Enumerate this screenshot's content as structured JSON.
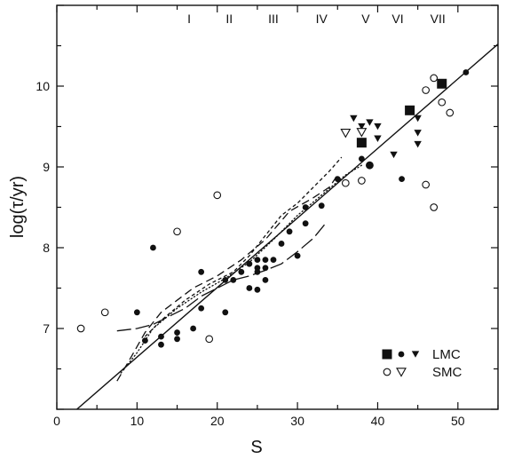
{
  "chart_data": {
    "type": "scatter",
    "xlabel": "S",
    "ylabel": "log(τ/yr)",
    "xlim": [
      0,
      55
    ],
    "ylim": [
      6.0,
      11.0
    ],
    "x_ticks": [
      0,
      10,
      20,
      30,
      40,
      50
    ],
    "y_ticks": [
      7,
      8,
      9,
      10
    ],
    "grid": false,
    "legend_position": "bottom-right",
    "classes": [
      {
        "label": "I",
        "s": 16.5
      },
      {
        "label": "II",
        "s": 21.5
      },
      {
        "label": "III",
        "s": 27
      },
      {
        "label": "IV",
        "s": 33
      },
      {
        "label": "V",
        "s": 38.5
      },
      {
        "label": "VI",
        "s": 42.5
      },
      {
        "label": "VII",
        "s": 47.5
      }
    ],
    "legend": [
      {
        "name": "LMC",
        "markers": [
          "filled-square",
          "filled-circle",
          "filled-triangle-down"
        ]
      },
      {
        "name": "SMC",
        "markers": [
          "open-circle",
          "open-triangle-down"
        ]
      }
    ],
    "series": [
      {
        "galaxy": "LMC",
        "marker": "filled-circle",
        "points": [
          [
            10,
            7.2
          ],
          [
            11,
            6.85
          ],
          [
            12,
            8.0
          ],
          [
            13,
            6.8
          ],
          [
            13,
            6.9
          ],
          [
            15,
            6.95
          ],
          [
            15,
            6.87
          ],
          [
            17,
            7.0
          ],
          [
            18,
            7.7
          ],
          [
            18,
            7.25
          ],
          [
            21,
            7.6
          ],
          [
            21,
            7.2
          ],
          [
            22,
            7.6
          ],
          [
            23,
            7.7
          ],
          [
            24,
            7.5
          ],
          [
            24,
            7.8
          ],
          [
            25,
            7.85
          ],
          [
            25,
            7.75
          ],
          [
            25,
            7.7
          ],
          [
            25,
            7.48
          ],
          [
            26,
            7.85
          ],
          [
            26,
            7.75
          ],
          [
            26,
            7.6
          ],
          [
            27,
            7.85
          ],
          [
            28,
            8.05
          ],
          [
            29,
            8.2
          ],
          [
            30,
            7.9
          ],
          [
            31,
            8.5
          ],
          [
            31,
            8.3
          ],
          [
            33,
            8.52
          ],
          [
            35,
            8.85
          ],
          [
            38,
            9.1
          ],
          [
            43,
            8.85
          ],
          [
            51,
            10.17
          ]
        ]
      },
      {
        "galaxy": "LMC",
        "marker": "filled-square",
        "points": [
          [
            38,
            9.3
          ],
          [
            44,
            9.7
          ],
          [
            48,
            10.03
          ]
        ]
      },
      {
        "galaxy": "LMC",
        "marker": "filled-triangle-down",
        "points": [
          [
            37,
            9.6
          ],
          [
            38,
            9.5
          ],
          [
            39,
            9.55
          ],
          [
            40,
            9.5
          ],
          [
            40,
            9.35
          ],
          [
            42,
            9.15
          ],
          [
            45,
            9.6
          ],
          [
            45,
            9.42
          ],
          [
            45,
            9.28
          ]
        ]
      },
      {
        "galaxy": "LMC",
        "marker": "filled-circle-large",
        "points": [
          [
            39,
            9.02
          ]
        ]
      },
      {
        "galaxy": "SMC",
        "marker": "open-circle",
        "points": [
          [
            3,
            7.0
          ],
          [
            6,
            7.2
          ],
          [
            15,
            8.2
          ],
          [
            19,
            6.87
          ],
          [
            20,
            8.65
          ],
          [
            36,
            8.8
          ],
          [
            38,
            8.83
          ],
          [
            46,
            9.95
          ],
          [
            46,
            8.78
          ],
          [
            47,
            10.1
          ],
          [
            47,
            8.5
          ],
          [
            48,
            9.8
          ],
          [
            49,
            9.67
          ]
        ]
      },
      {
        "galaxy": "SMC",
        "marker": "open-triangle-down",
        "points": [
          [
            36,
            9.42
          ],
          [
            38,
            9.43
          ]
        ]
      }
    ],
    "fit_line": [
      [
        2.5,
        6.0
      ],
      [
        55,
        10.52
      ]
    ],
    "curves": [
      {
        "style": "dashed",
        "points": [
          [
            7.5,
            6.35
          ],
          [
            9,
            6.6
          ],
          [
            11,
            6.95
          ],
          [
            13,
            7.2
          ],
          [
            15,
            7.35
          ],
          [
            17,
            7.5
          ],
          [
            20,
            7.65
          ],
          [
            23,
            7.85
          ],
          [
            26,
            8.1
          ],
          [
            29,
            8.45
          ],
          [
            32,
            8.62
          ],
          [
            34,
            8.75
          ],
          [
            35,
            8.9
          ]
        ]
      },
      {
        "style": "short-dashed",
        "points": [
          [
            11,
            6.9
          ],
          [
            13,
            7.1
          ],
          [
            16,
            7.35
          ],
          [
            19,
            7.55
          ],
          [
            22,
            7.7
          ],
          [
            24,
            7.9
          ],
          [
            26,
            8.15
          ],
          [
            28,
            8.4
          ],
          [
            30,
            8.55
          ],
          [
            32,
            8.75
          ],
          [
            34,
            8.95
          ],
          [
            35.5,
            9.12
          ]
        ]
      },
      {
        "style": "dotted",
        "points": [
          [
            8,
            6.45
          ],
          [
            10,
            6.7
          ],
          [
            12,
            7.0
          ],
          [
            15,
            7.25
          ],
          [
            18,
            7.45
          ],
          [
            21,
            7.62
          ],
          [
            24,
            7.82
          ],
          [
            27,
            8.1
          ],
          [
            30,
            8.4
          ],
          [
            33,
            8.65
          ],
          [
            36,
            8.9
          ],
          [
            38,
            9.02
          ]
        ]
      },
      {
        "style": "long-dashed",
        "points": [
          [
            7.5,
            6.97
          ],
          [
            10,
            7.0
          ],
          [
            12,
            7.05
          ],
          [
            14,
            7.15
          ],
          [
            16,
            7.25
          ],
          [
            18,
            7.4
          ],
          [
            20,
            7.5
          ],
          [
            22,
            7.6
          ],
          [
            24,
            7.65
          ],
          [
            26,
            7.72
          ],
          [
            28,
            7.8
          ],
          [
            30,
            7.95
          ],
          [
            32,
            8.12
          ],
          [
            33.5,
            8.3
          ]
        ]
      }
    ]
  }
}
